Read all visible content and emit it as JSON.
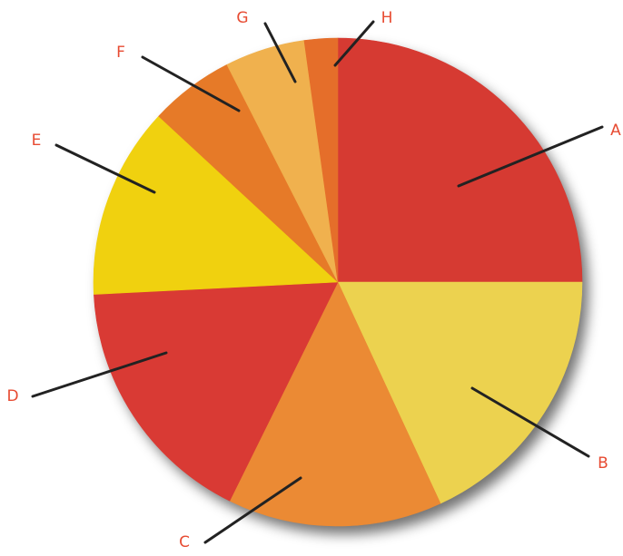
{
  "chart_data": {
    "type": "pie",
    "title": "",
    "slices": [
      {
        "label": "A",
        "value": 25.0,
        "color": "#d63a32"
      },
      {
        "label": "B",
        "value": 18.1,
        "color": "#ecd24f"
      },
      {
        "label": "C",
        "value": 14.2,
        "color": "#eb8a34"
      },
      {
        "label": "D",
        "value": 16.9,
        "color": "#d93a34"
      },
      {
        "label": "E",
        "value": 12.7,
        "color": "#f0d10f"
      },
      {
        "label": "F",
        "value": 5.6,
        "color": "#e67a28"
      },
      {
        "label": "G",
        "value": 5.3,
        "color": "#f0b14e"
      },
      {
        "label": "H",
        "value": 2.2,
        "color": "#e56e2a"
      }
    ],
    "start": "12 o'clock",
    "direction": "clockwise",
    "label_color": "#e74b32",
    "leader_color": "#222222",
    "legend": "none"
  }
}
